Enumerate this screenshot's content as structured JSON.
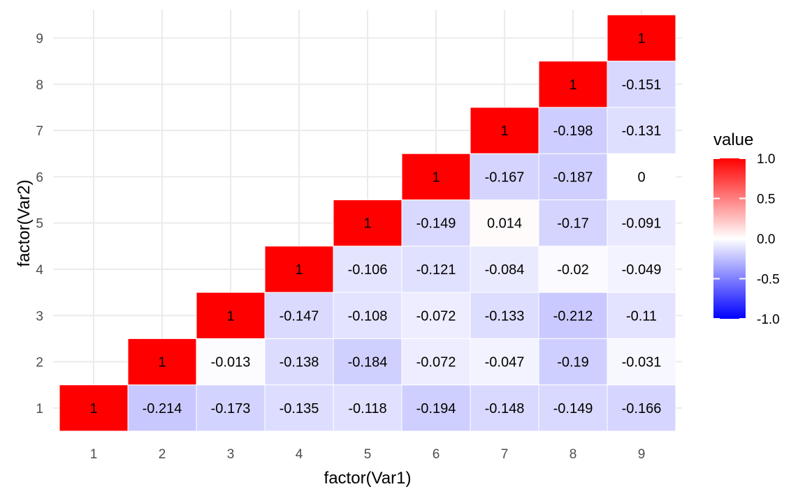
{
  "chart_data": {
    "type": "heatmap",
    "title": "",
    "xlabel": "factor(Var1)",
    "ylabel": "factor(Var2)",
    "x_categories": [
      "1",
      "2",
      "3",
      "4",
      "5",
      "6",
      "7",
      "8",
      "9"
    ],
    "y_categories": [
      "1",
      "2",
      "3",
      "4",
      "5",
      "6",
      "7",
      "8",
      "9"
    ],
    "grid": true,
    "legend_position": "right",
    "legend": {
      "title": "value",
      "ticks": [
        1.0,
        0.5,
        0.0,
        -0.5,
        -1.0
      ],
      "tick_labels": [
        "1.0",
        "0.5",
        "0.0",
        "-0.5",
        "-1.0"
      ],
      "range": [
        -1,
        1
      ]
    },
    "colors": {
      "low": "#0000ff",
      "mid": "#ffffff",
      "high": "#ff0000"
    },
    "cells": [
      {
        "x": "1",
        "y": "1",
        "value": 1,
        "label": "1"
      },
      {
        "x": "2",
        "y": "1",
        "value": -0.214,
        "label": "-0.214"
      },
      {
        "x": "3",
        "y": "1",
        "value": -0.173,
        "label": "-0.173"
      },
      {
        "x": "4",
        "y": "1",
        "value": -0.135,
        "label": "-0.135"
      },
      {
        "x": "5",
        "y": "1",
        "value": -0.118,
        "label": "-0.118"
      },
      {
        "x": "6",
        "y": "1",
        "value": -0.194,
        "label": "-0.194"
      },
      {
        "x": "7",
        "y": "1",
        "value": -0.148,
        "label": "-0.148"
      },
      {
        "x": "8",
        "y": "1",
        "value": -0.149,
        "label": "-0.149"
      },
      {
        "x": "9",
        "y": "1",
        "value": -0.166,
        "label": "-0.166"
      },
      {
        "x": "2",
        "y": "2",
        "value": 1,
        "label": "1"
      },
      {
        "x": "3",
        "y": "2",
        "value": -0.013,
        "label": "-0.013"
      },
      {
        "x": "4",
        "y": "2",
        "value": -0.138,
        "label": "-0.138"
      },
      {
        "x": "5",
        "y": "2",
        "value": -0.184,
        "label": "-0.184"
      },
      {
        "x": "6",
        "y": "2",
        "value": -0.072,
        "label": "-0.072"
      },
      {
        "x": "7",
        "y": "2",
        "value": -0.047,
        "label": "-0.047"
      },
      {
        "x": "8",
        "y": "2",
        "value": -0.19,
        "label": "-0.19"
      },
      {
        "x": "9",
        "y": "2",
        "value": -0.031,
        "label": "-0.031"
      },
      {
        "x": "3",
        "y": "3",
        "value": 1,
        "label": "1"
      },
      {
        "x": "4",
        "y": "3",
        "value": -0.147,
        "label": "-0.147"
      },
      {
        "x": "5",
        "y": "3",
        "value": -0.108,
        "label": "-0.108"
      },
      {
        "x": "6",
        "y": "3",
        "value": -0.072,
        "label": "-0.072"
      },
      {
        "x": "7",
        "y": "3",
        "value": -0.133,
        "label": "-0.133"
      },
      {
        "x": "8",
        "y": "3",
        "value": -0.212,
        "label": "-0.212"
      },
      {
        "x": "9",
        "y": "3",
        "value": -0.11,
        "label": "-0.11"
      },
      {
        "x": "4",
        "y": "4",
        "value": 1,
        "label": "1"
      },
      {
        "x": "5",
        "y": "4",
        "value": -0.106,
        "label": "-0.106"
      },
      {
        "x": "6",
        "y": "4",
        "value": -0.121,
        "label": "-0.121"
      },
      {
        "x": "7",
        "y": "4",
        "value": -0.084,
        "label": "-0.084"
      },
      {
        "x": "8",
        "y": "4",
        "value": -0.02,
        "label": "-0.02"
      },
      {
        "x": "9",
        "y": "4",
        "value": -0.049,
        "label": "-0.049"
      },
      {
        "x": "5",
        "y": "5",
        "value": 1,
        "label": "1"
      },
      {
        "x": "6",
        "y": "5",
        "value": -0.149,
        "label": "-0.149"
      },
      {
        "x": "7",
        "y": "5",
        "value": 0.014,
        "label": "0.014"
      },
      {
        "x": "8",
        "y": "5",
        "value": -0.17,
        "label": "-0.17"
      },
      {
        "x": "9",
        "y": "5",
        "value": -0.091,
        "label": "-0.091"
      },
      {
        "x": "6",
        "y": "6",
        "value": 1,
        "label": "1"
      },
      {
        "x": "7",
        "y": "6",
        "value": -0.167,
        "label": "-0.167"
      },
      {
        "x": "8",
        "y": "6",
        "value": -0.187,
        "label": "-0.187"
      },
      {
        "x": "9",
        "y": "6",
        "value": 0,
        "label": "0"
      },
      {
        "x": "7",
        "y": "7",
        "value": 1,
        "label": "1"
      },
      {
        "x": "8",
        "y": "7",
        "value": -0.198,
        "label": "-0.198"
      },
      {
        "x": "9",
        "y": "7",
        "value": -0.131,
        "label": "-0.131"
      },
      {
        "x": "8",
        "y": "8",
        "value": 1,
        "label": "1"
      },
      {
        "x": "9",
        "y": "8",
        "value": -0.151,
        "label": "-0.151"
      },
      {
        "x": "9",
        "y": "9",
        "value": 1,
        "label": "1"
      }
    ]
  }
}
